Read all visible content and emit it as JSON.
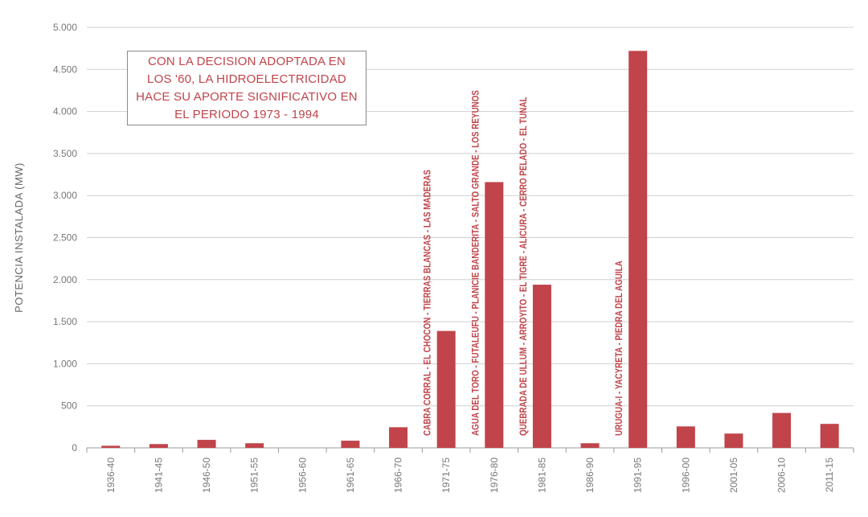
{
  "chart_data": {
    "type": "bar",
    "categories": [
      "1936-40",
      "1941-45",
      "1946-50",
      "1951-55",
      "1956-60",
      "1961-65",
      "1966-70",
      "1971-75",
      "1976-80",
      "1981-85",
      "1986-90",
      "1991-95",
      "1996-00",
      "2001-05",
      "2006-10",
      "2011-15"
    ],
    "values": [
      25,
      45,
      95,
      55,
      0,
      85,
      245,
      1390,
      3160,
      1940,
      55,
      4720,
      255,
      170,
      415,
      285
    ],
    "ylabel": "POTENCIA INSTALADA (MW)",
    "xlabel": "",
    "ylim": [
      0,
      5000
    ],
    "yticks": [
      0,
      500,
      1000,
      1500,
      2000,
      2500,
      3000,
      3500,
      4000,
      4500,
      5000
    ],
    "ytick_labels": [
      "0",
      "500",
      "1.000",
      "1.500",
      "2.000",
      "2.500",
      "3.000",
      "3.500",
      "4.000",
      "4.500",
      "5.000"
    ],
    "grid": true,
    "bar_color": "#c0444a",
    "annotations": [
      {
        "category": "1971-75",
        "text": "CABRA CORRAL -  EL CHOCON - TIERRAS BLANCAS -  LAS MADERAS"
      },
      {
        "category": "1976-80",
        "text": "AGUA DEL TORO - FUTALEUFU - PLANICIE BANDERITA - SALTO GRANDE - LOS REYUNOS"
      },
      {
        "category": "1981-85",
        "text": "QUEBRADA DE ULLUM - ARROYITO - EL TIGRE -  ALICURA - CERRO PELADO - EL TUNAL"
      },
      {
        "category": "1991-95",
        "text": "URUGUA-I  - YACYRETA -  PIEDRA DEL AGUILA"
      }
    ],
    "callout": "CON LA DECISION ADOPTADA EN\nLOS '60, LA HIDROELECTRICIDAD\nHACE SU APORTE SIGNIFICATIVO EN\nEL PERIODO 1973 - 1994"
  }
}
